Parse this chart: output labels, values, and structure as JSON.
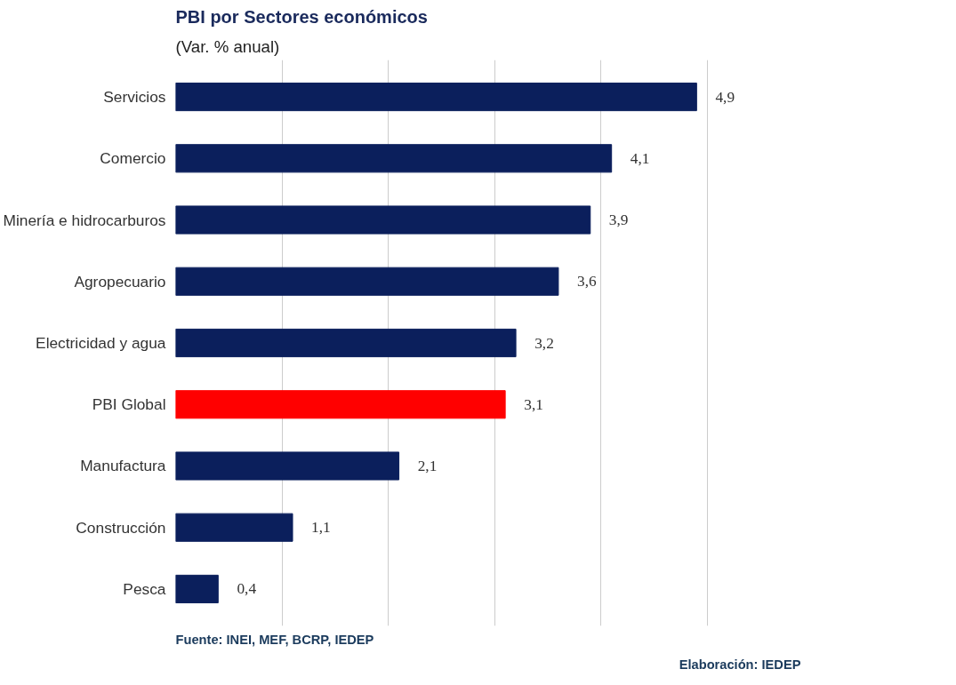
{
  "chart_data": {
    "type": "bar",
    "orientation": "horizontal",
    "title": "PBI por Sectores económicos",
    "subtitle": "(Var. % anual)",
    "categories": [
      "Servicios",
      "Comercio",
      "Minería e hidrocarburos",
      "Agropecuario",
      "Electricidad y agua",
      "PBI Global",
      "Manufactura",
      "Construcción",
      "Pesca"
    ],
    "values": [
      4.9,
      4.1,
      3.9,
      3.6,
      3.2,
      3.1,
      2.1,
      1.1,
      0.4
    ],
    "colors": [
      "#0b1f5c",
      "#0b1f5c",
      "#0b1f5c",
      "#0b1f5c",
      "#0b1f5c",
      "#ff0000",
      "#0b1f5c",
      "#0b1f5c",
      "#0b1f5c"
    ],
    "value_labels": [
      "4,9",
      "4,1",
      "3,9",
      "3,6",
      "3,2",
      "3,1",
      "2,1",
      "1,1",
      "0,4"
    ],
    "grid": "x",
    "tick_labels": "y",
    "annotations": [
      "Fuente: INEI, MEF, BCRP, IEDEP",
      "Elaboración: IEDEP"
    ]
  }
}
